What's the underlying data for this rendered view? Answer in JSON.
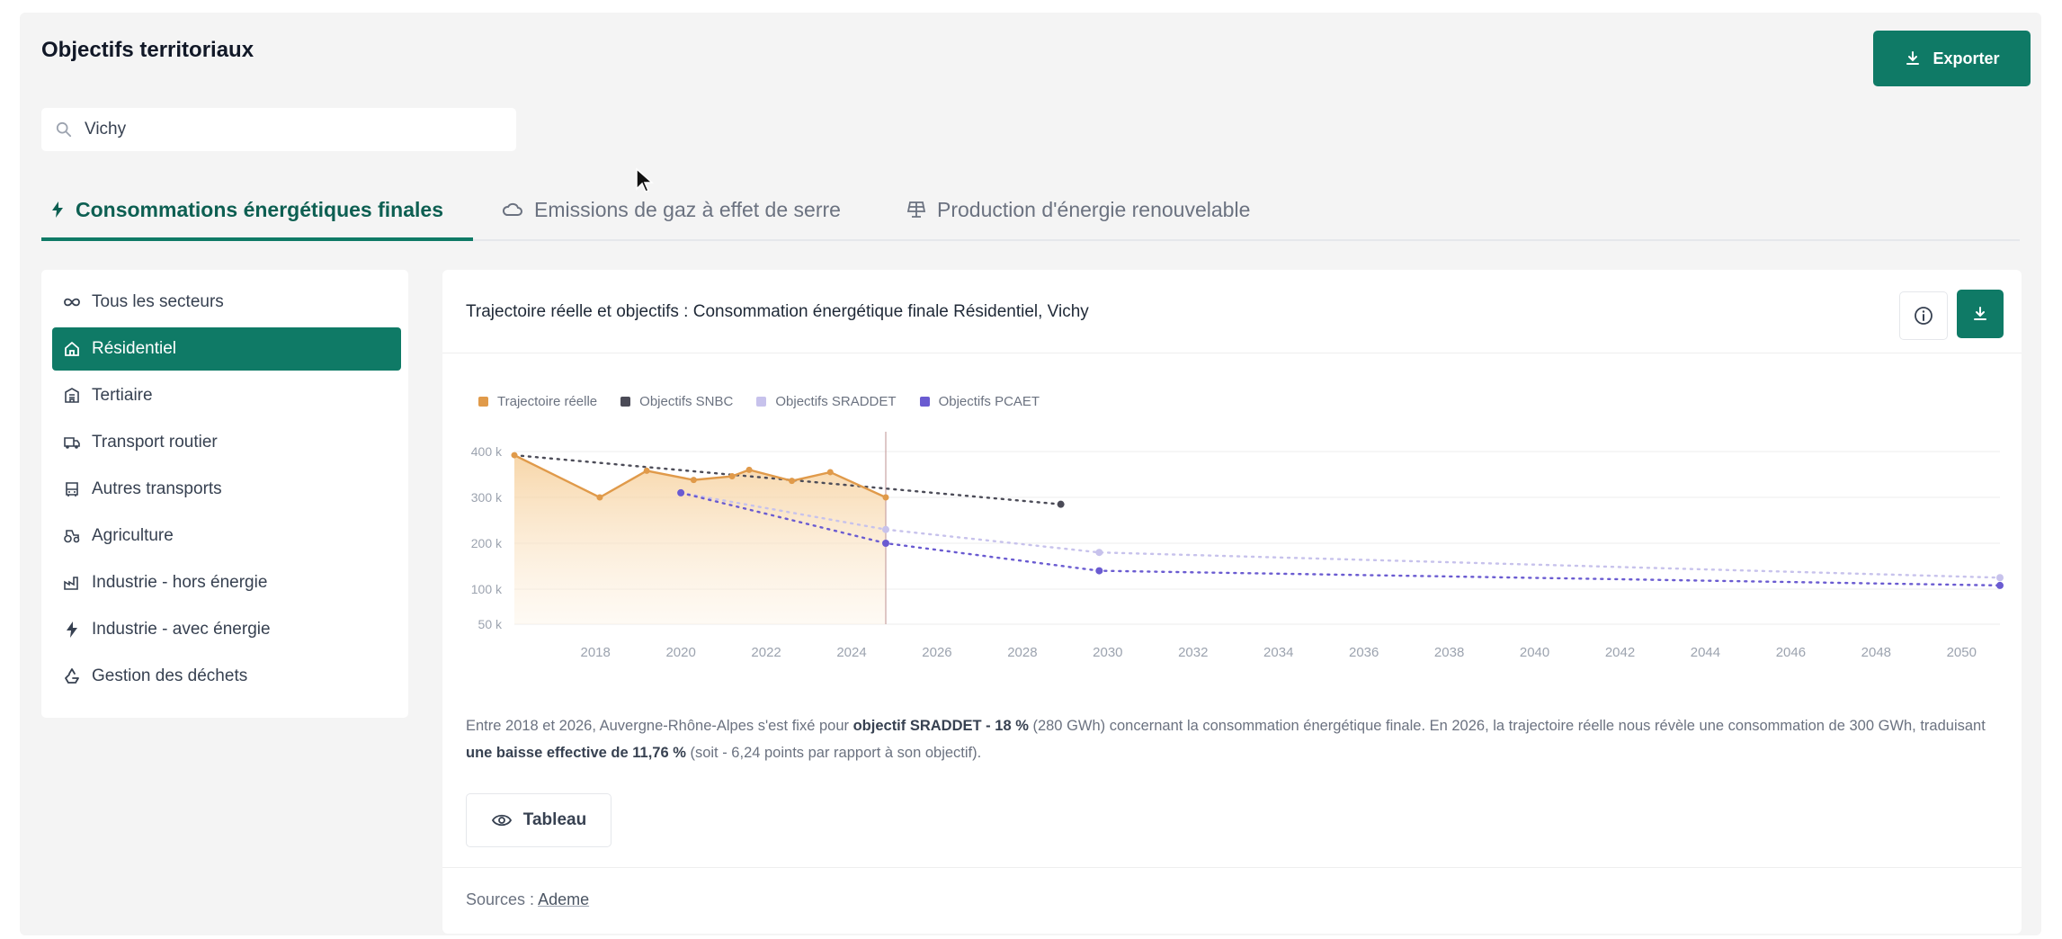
{
  "header": {
    "title": "Objectifs territoriaux",
    "export_label": "Exporter"
  },
  "search": {
    "value": "Vichy",
    "icon": "search-icon"
  },
  "tabs": [
    {
      "label": "Consommations énergétiques finales",
      "icon": "bolt-icon",
      "active": true
    },
    {
      "label": "Emissions de gaz à effet de serre",
      "icon": "cloud-icon",
      "active": false
    },
    {
      "label": "Production d'énergie renouvelable",
      "icon": "solar-panel-icon",
      "active": false
    }
  ],
  "sidebar": {
    "items": [
      {
        "label": "Tous les secteurs",
        "icon": "infinity-icon",
        "active": false
      },
      {
        "label": "Résidentiel",
        "icon": "house-icon",
        "active": true
      },
      {
        "label": "Tertiaire",
        "icon": "building-icon",
        "active": false
      },
      {
        "label": "Transport routier",
        "icon": "truck-icon",
        "active": false
      },
      {
        "label": "Autres transports",
        "icon": "bus-icon",
        "active": false
      },
      {
        "label": "Agriculture",
        "icon": "tractor-icon",
        "active": false
      },
      {
        "label": "Industrie - hors énergie",
        "icon": "factory-icon",
        "active": false
      },
      {
        "label": "Industrie - avec énergie",
        "icon": "bolt-icon",
        "active": false
      },
      {
        "label": "Gestion des déchets",
        "icon": "recycle-icon",
        "active": false
      }
    ]
  },
  "card": {
    "title": "Trajectoire réelle et objectifs : Consommation énergétique finale Résidentiel, Vichy",
    "description": {
      "p1": "Entre 2018 et 2026, Auvergne-Rhône-Alpes s'est fixé pour ",
      "b1": "objectif SRADDET - 18 %",
      "p2": " (280 GWh) concernant la consommation énergétique finale. En 2026, la trajectoire réelle nous révèle une consommation de 300 GWh, traduisant ",
      "b2": "une baisse effective de 11,76 %",
      "p3": " (soit - 6,24 points par rapport à son objectif)."
    },
    "tableau_label": "Tableau",
    "sources_label": "Sources :",
    "sources_link": "Ademe"
  },
  "colors": {
    "accent": "#0f7a66",
    "reel": "#e09a4a",
    "snbc": "#4b4b57",
    "sraddet": "#c7c2ec",
    "pcaet": "#6a5bd1"
  },
  "chart_data": {
    "type": "line",
    "title": "",
    "legend": [
      "Trajectoire réelle",
      "Objectifs SNBC",
      "Objectifs SRADDET",
      "Objectifs PCAET"
    ],
    "legend_position": "top-left",
    "yticks": [
      "400 k",
      "300 k",
      "200 k",
      "100 k",
      "50 k"
    ],
    "ytick_values": [
      400,
      300,
      200,
      100,
      50
    ],
    "xticks": [
      2018,
      2020,
      2022,
      2024,
      2026,
      2028,
      2030,
      2032,
      2034,
      2036,
      2038,
      2040,
      2042,
      2044,
      2046,
      2048,
      2050
    ],
    "xlim": [
      2016.1,
      2050.9
    ],
    "ylim": [
      25,
      412
    ],
    "grid": true,
    "marker_year": 2026,
    "series": [
      {
        "name": "Trajectoire réelle",
        "style": "area-solid",
        "color_key": "reel",
        "points": [
          [
            2016.1,
            392
          ],
          [
            2018.1,
            300
          ],
          [
            2019.2,
            358
          ],
          [
            2020.3,
            338
          ],
          [
            2021.2,
            346
          ],
          [
            2021.6,
            360
          ],
          [
            2022.6,
            336
          ],
          [
            2023.5,
            355
          ],
          [
            2024.8,
            300
          ]
        ]
      },
      {
        "name": "Objectifs SNBC",
        "style": "dotted",
        "color_key": "snbc",
        "points": [
          [
            2016.1,
            392
          ],
          [
            2028.9,
            285
          ]
        ]
      },
      {
        "name": "Objectifs SRADDET",
        "style": "dotted",
        "color_key": "sraddet",
        "points": [
          [
            2020.0,
            310
          ],
          [
            2024.8,
            230
          ],
          [
            2029.8,
            180
          ],
          [
            2050.9,
            125
          ]
        ]
      },
      {
        "name": "Objectifs PCAET",
        "style": "dotted",
        "color_key": "pcaet",
        "points": [
          [
            2020.0,
            310
          ],
          [
            2024.8,
            200
          ],
          [
            2029.8,
            140
          ],
          [
            2050.9,
            108
          ]
        ]
      }
    ]
  }
}
